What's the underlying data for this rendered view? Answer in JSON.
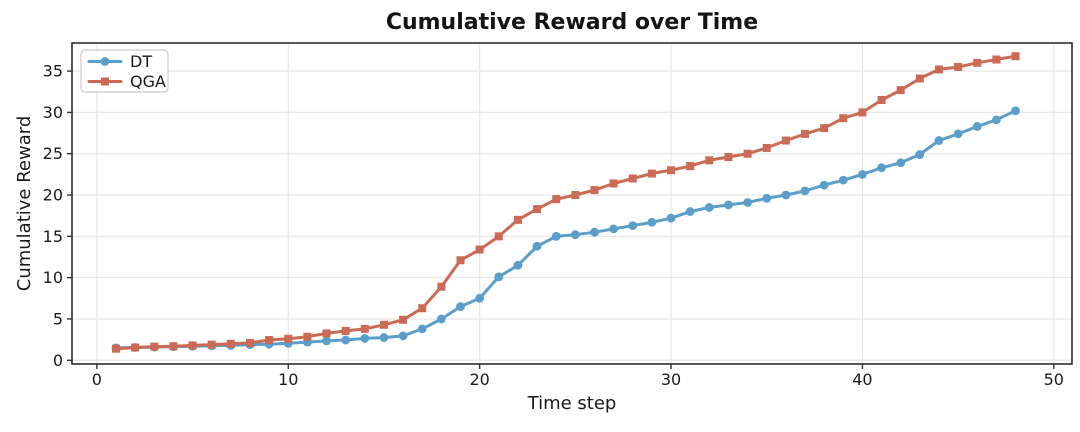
{
  "chart_data": {
    "type": "line",
    "title": "Cumulative Reward over Time",
    "xlabel": "Time step",
    "ylabel": "Cumulative Reward",
    "grid": true,
    "legend_position": "upper left",
    "xlim": [
      -1.3,
      50.95
    ],
    "ylim": [
      -0.45,
      38.4
    ],
    "xticks": [
      0,
      10,
      20,
      30,
      40,
      50
    ],
    "yticks": [
      0,
      5,
      10,
      15,
      20,
      25,
      30,
      35
    ],
    "x": [
      1,
      2,
      3,
      4,
      5,
      6,
      7,
      8,
      9,
      10,
      11,
      12,
      13,
      14,
      15,
      16,
      17,
      18,
      19,
      20,
      21,
      22,
      23,
      24,
      25,
      26,
      27,
      28,
      29,
      30,
      31,
      32,
      33,
      34,
      35,
      36,
      37,
      38,
      39,
      40,
      41,
      42,
      43,
      44,
      45,
      46,
      47,
      48
    ],
    "series": [
      {
        "name": "DT",
        "color": "#5b9ec9",
        "marker": "circle",
        "values": [
          1.5,
          1.55,
          1.6,
          1.65,
          1.7,
          1.75,
          1.8,
          1.9,
          1.95,
          2.05,
          2.2,
          2.35,
          2.45,
          2.65,
          2.75,
          2.95,
          3.8,
          5.0,
          6.5,
          7.5,
          10.1,
          11.5,
          13.8,
          15.0,
          15.2,
          15.5,
          15.9,
          16.3,
          16.7,
          17.2,
          18.0,
          18.5,
          18.8,
          19.1,
          19.6,
          20.0,
          20.5,
          21.2,
          21.8,
          22.5,
          23.3,
          23.9,
          24.9,
          26.6,
          27.4,
          28.3,
          29.1,
          30.2
        ]
      },
      {
        "name": "QGA",
        "color": "#cb6a55",
        "marker": "square",
        "values": [
          1.4,
          1.55,
          1.65,
          1.7,
          1.8,
          1.9,
          2.0,
          2.1,
          2.45,
          2.6,
          2.85,
          3.25,
          3.55,
          3.8,
          4.3,
          4.9,
          6.3,
          8.9,
          12.1,
          13.4,
          15.0,
          17.0,
          18.3,
          19.5,
          20.0,
          20.6,
          21.4,
          22.0,
          22.6,
          23.0,
          23.5,
          24.2,
          24.6,
          25.0,
          25.7,
          26.6,
          27.4,
          28.1,
          29.3,
          30.0,
          31.5,
          32.7,
          34.1,
          35.2,
          35.5,
          36.0,
          36.4,
          36.8
        ]
      }
    ],
    "colors": {
      "grid": "#e7e7e7",
      "spine": "#1f1f1f",
      "tick": "#333333",
      "legend_border": "#cccccc",
      "background": "#ffffff"
    }
  }
}
